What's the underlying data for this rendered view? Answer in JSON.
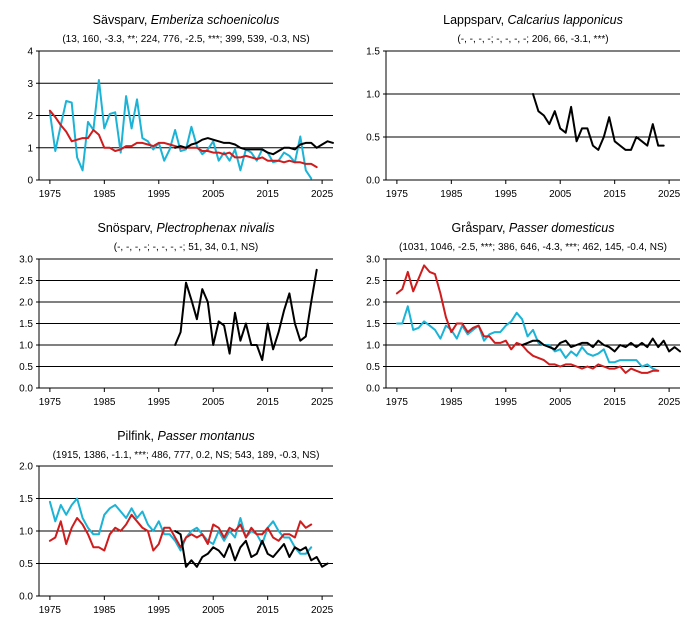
{
  "chart_data": [
    {
      "type": "line",
      "title_common": "Sävsparv",
      "title_latin": "Emberiza schoenicolus",
      "subtitle": "(13, 160, -3.3, **; 224, 776, -2.5, ***; 399, 539, -0.3, NS)",
      "xlim": [
        1973,
        2027
      ],
      "ylim": [
        0,
        4
      ],
      "xticks": [
        1975,
        1985,
        1995,
        2005,
        2015,
        2025
      ],
      "yticks": [
        0,
        1,
        2,
        3,
        4
      ],
      "ytick_labels": [
        "0",
        "1",
        "2",
        "3",
        "4"
      ],
      "series": [
        {
          "name": "cyan",
          "color": "#1bb3d6",
          "x_start": 1975,
          "values": [
            2.1,
            0.9,
            1.7,
            2.45,
            2.4,
            0.7,
            0.3,
            1.8,
            1.55,
            3.1,
            1.6,
            2.05,
            2.1,
            0.85,
            2.6,
            1.6,
            2.5,
            1.3,
            1.2,
            0.95,
            1.15,
            0.6,
            0.95,
            1.55,
            0.9,
            0.95,
            1.65,
            1.05,
            0.8,
            0.95,
            1.2,
            0.6,
            0.85,
            0.6,
            0.95,
            0.3,
            0.95,
            0.85,
            0.6,
            0.95,
            0.85,
            0.55,
            0.6,
            0.85,
            0.75,
            0.55,
            1.35,
            0.3,
            0.05
          ]
        },
        {
          "name": "red",
          "color": "#d01c1c",
          "x_start": 1975,
          "values": [
            2.15,
            1.95,
            1.7,
            1.5,
            1.2,
            1.25,
            1.3,
            1.3,
            1.55,
            1.4,
            1.0,
            1.0,
            0.9,
            0.95,
            1.05,
            1.05,
            1.15,
            1.15,
            1.1,
            1.05,
            1.15,
            1.15,
            1.1,
            1.05,
            1.0,
            1.0,
            1.0,
            1.0,
            0.9,
            0.9,
            0.85,
            0.85,
            0.8,
            0.85,
            0.7,
            0.7,
            0.75,
            0.7,
            0.65,
            0.7,
            0.6,
            0.6,
            0.6,
            0.55,
            0.6,
            0.55,
            0.55,
            0.5,
            0.5,
            0.4
          ]
        },
        {
          "name": "black",
          "color": "#000000",
          "x_start": 1998,
          "values": [
            1.0,
            1.05,
            1.0,
            1.1,
            1.15,
            1.25,
            1.3,
            1.25,
            1.2,
            1.15,
            1.15,
            1.1,
            1.0,
            0.95,
            0.95,
            0.95,
            0.95,
            0.85,
            0.8,
            0.9,
            1.0,
            1.0,
            0.95,
            1.1,
            1.15,
            1.15,
            1.0,
            1.1,
            1.2,
            1.15
          ]
        }
      ]
    },
    {
      "type": "line",
      "title_common": "Lappsparv",
      "title_latin": "Calcarius lapponicus",
      "subtitle": "(-, -, -, -; -, -, -, -; 206, 66, -3.1, ***)",
      "xlim": [
        1973,
        2027
      ],
      "ylim": [
        0,
        1.5
      ],
      "xticks": [
        1975,
        1985,
        1995,
        2005,
        2015,
        2025
      ],
      "yticks": [
        0,
        0.5,
        1.0,
        1.5
      ],
      "ytick_labels": [
        "0.0",
        "0.5",
        "1.0",
        "1.5"
      ],
      "series": [
        {
          "name": "black",
          "color": "#000000",
          "x_start": 2000,
          "values": [
            1.0,
            0.8,
            0.75,
            0.65,
            0.8,
            0.6,
            0.55,
            0.85,
            0.45,
            0.6,
            0.6,
            0.4,
            0.35,
            0.5,
            0.73,
            0.45,
            0.4,
            0.35,
            0.35,
            0.5,
            0.45,
            0.4,
            0.65,
            0.4,
            0.4
          ]
        }
      ]
    },
    {
      "type": "line",
      "title_common": "Snösparv",
      "title_latin": "Plectrophenax nivalis",
      "subtitle": "(-, -, -, -; -, -, -, -; 51, 34, 0.1, NS)",
      "xlim": [
        1973,
        2027
      ],
      "ylim": [
        0,
        3.0
      ],
      "xticks": [
        1975,
        1985,
        1995,
        2005,
        2015,
        2025
      ],
      "yticks": [
        0,
        0.5,
        1.0,
        1.5,
        2.0,
        2.5,
        3.0
      ],
      "ytick_labels": [
        "0.0",
        "0.5",
        "1.0",
        "1.5",
        "2.0",
        "2.5",
        "3.0"
      ],
      "series": [
        {
          "name": "black",
          "color": "#000000",
          "x_start": 1998,
          "values": [
            1.0,
            1.3,
            2.45,
            2.05,
            1.6,
            2.3,
            2.0,
            1.0,
            1.55,
            1.45,
            0.8,
            1.75,
            1.1,
            1.5,
            1.0,
            1.0,
            0.65,
            1.5,
            0.9,
            1.3,
            1.8,
            2.2,
            1.5,
            1.1,
            1.2,
            2.0,
            2.75
          ]
        }
      ]
    },
    {
      "type": "line",
      "title_common": "Gråsparv",
      "title_latin": "Passer domesticus",
      "subtitle": "(1031, 1046, -2.5, ***; 386, 646, -4.3, ***; 462, 145, -0.4, NS)",
      "xlim": [
        1973,
        2027
      ],
      "ylim": [
        0,
        3.0
      ],
      "xticks": [
        1975,
        1985,
        1995,
        2005,
        2015,
        2025
      ],
      "yticks": [
        0,
        0.5,
        1.0,
        1.5,
        2.0,
        2.5,
        3.0
      ],
      "ytick_labels": [
        "0.0",
        "0.5",
        "1.0",
        "1.5",
        "2.0",
        "2.5",
        "3.0"
      ],
      "series": [
        {
          "name": "cyan",
          "color": "#1bb3d6",
          "x_start": 1975,
          "values": [
            1.5,
            1.5,
            1.9,
            1.35,
            1.4,
            1.55,
            1.45,
            1.35,
            1.15,
            1.45,
            1.35,
            1.15,
            1.45,
            1.25,
            1.35,
            1.45,
            1.1,
            1.25,
            1.3,
            1.3,
            1.45,
            1.55,
            1.75,
            1.6,
            1.2,
            1.35,
            1.05,
            1.0,
            1.0,
            0.85,
            0.9,
            0.7,
            0.85,
            0.75,
            0.95,
            0.8,
            0.75,
            0.8,
            0.9,
            0.6,
            0.6,
            0.65,
            0.65,
            0.65,
            0.65,
            0.5,
            0.55,
            0.45,
            0.4
          ]
        },
        {
          "name": "red",
          "color": "#d01c1c",
          "x_start": 1975,
          "values": [
            2.2,
            2.3,
            2.7,
            2.25,
            2.55,
            2.85,
            2.7,
            2.65,
            2.2,
            1.65,
            1.3,
            1.5,
            1.5,
            1.3,
            1.4,
            1.45,
            1.2,
            1.2,
            1.05,
            1.05,
            1.1,
            0.9,
            1.05,
            1.0,
            0.85,
            0.75,
            0.7,
            0.65,
            0.55,
            0.55,
            0.5,
            0.55,
            0.55,
            0.5,
            0.45,
            0.5,
            0.45,
            0.55,
            0.5,
            0.45,
            0.45,
            0.5,
            0.35,
            0.45,
            0.4,
            0.35,
            0.35,
            0.4,
            0.4
          ]
        },
        {
          "name": "black",
          "color": "#000000",
          "x_start": 1998,
          "values": [
            1.0,
            1.05,
            1.1,
            1.1,
            1.0,
            0.95,
            0.9,
            1.05,
            1.1,
            0.95,
            1.0,
            1.05,
            1.05,
            0.95,
            1.1,
            1.0,
            0.95,
            0.85,
            1.0,
            0.95,
            1.05,
            0.95,
            1.05,
            0.95,
            1.15,
            0.95,
            1.1,
            0.85,
            0.95,
            0.85
          ]
        }
      ]
    },
    {
      "type": "line",
      "title_common": "Pilfink",
      "title_latin": "Passer montanus",
      "subtitle": "(1915, 1386, -1.1, ***; 486, 777, 0.2, NS; 543, 189, -0.3, NS)",
      "xlim": [
        1973,
        2027
      ],
      "ylim": [
        0,
        2.0
      ],
      "xticks": [
        1975,
        1985,
        1995,
        2005,
        2015,
        2025
      ],
      "yticks": [
        0,
        0.5,
        1.0,
        1.5,
        2.0
      ],
      "ytick_labels": [
        "0.0",
        "0.5",
        "1.0",
        "1.5",
        "2.0"
      ],
      "series": [
        {
          "name": "cyan",
          "color": "#1bb3d6",
          "x_start": 1975,
          "values": [
            1.45,
            1.15,
            1.4,
            1.25,
            1.4,
            1.5,
            1.2,
            1.05,
            0.95,
            0.95,
            1.25,
            1.35,
            1.4,
            1.3,
            1.2,
            1.35,
            1.2,
            1.3,
            1.1,
            1.0,
            1.15,
            0.95,
            0.95,
            0.85,
            0.7,
            0.9,
            1.0,
            1.05,
            0.95,
            0.85,
            0.8,
            1.0,
            0.85,
            1.0,
            0.9,
            1.2,
            0.9,
            1.0,
            0.95,
            0.8,
            1.05,
            1.15,
            1.0,
            0.9,
            0.9,
            0.75,
            0.65,
            0.65,
            0.75
          ]
        },
        {
          "name": "red",
          "color": "#d01c1c",
          "x_start": 1975,
          "values": [
            0.85,
            0.9,
            1.15,
            0.8,
            1.05,
            1.2,
            1.1,
            0.95,
            0.75,
            0.75,
            0.7,
            0.95,
            1.05,
            1.0,
            1.1,
            1.25,
            1.15,
            1.05,
            1.0,
            0.7,
            0.8,
            1.05,
            1.05,
            0.9,
            0.75,
            0.9,
            0.95,
            0.9,
            0.95,
            0.8,
            1.1,
            1.05,
            0.9,
            1.05,
            1.0,
            1.1,
            0.9,
            1.05,
            0.95,
            0.95,
            1.05,
            0.9,
            0.85,
            0.95,
            0.95,
            0.9,
            1.15,
            1.05,
            1.1
          ]
        },
        {
          "name": "black",
          "color": "#000000",
          "x_start": 1998,
          "values": [
            1.0,
            0.95,
            0.45,
            0.55,
            0.45,
            0.6,
            0.65,
            0.75,
            0.7,
            0.6,
            0.8,
            0.55,
            0.75,
            0.85,
            0.6,
            0.65,
            0.85,
            0.65,
            0.6,
            0.7,
            0.8,
            0.6,
            0.75,
            0.7,
            0.75,
            0.55,
            0.6,
            0.45,
            0.5
          ]
        }
      ]
    }
  ]
}
